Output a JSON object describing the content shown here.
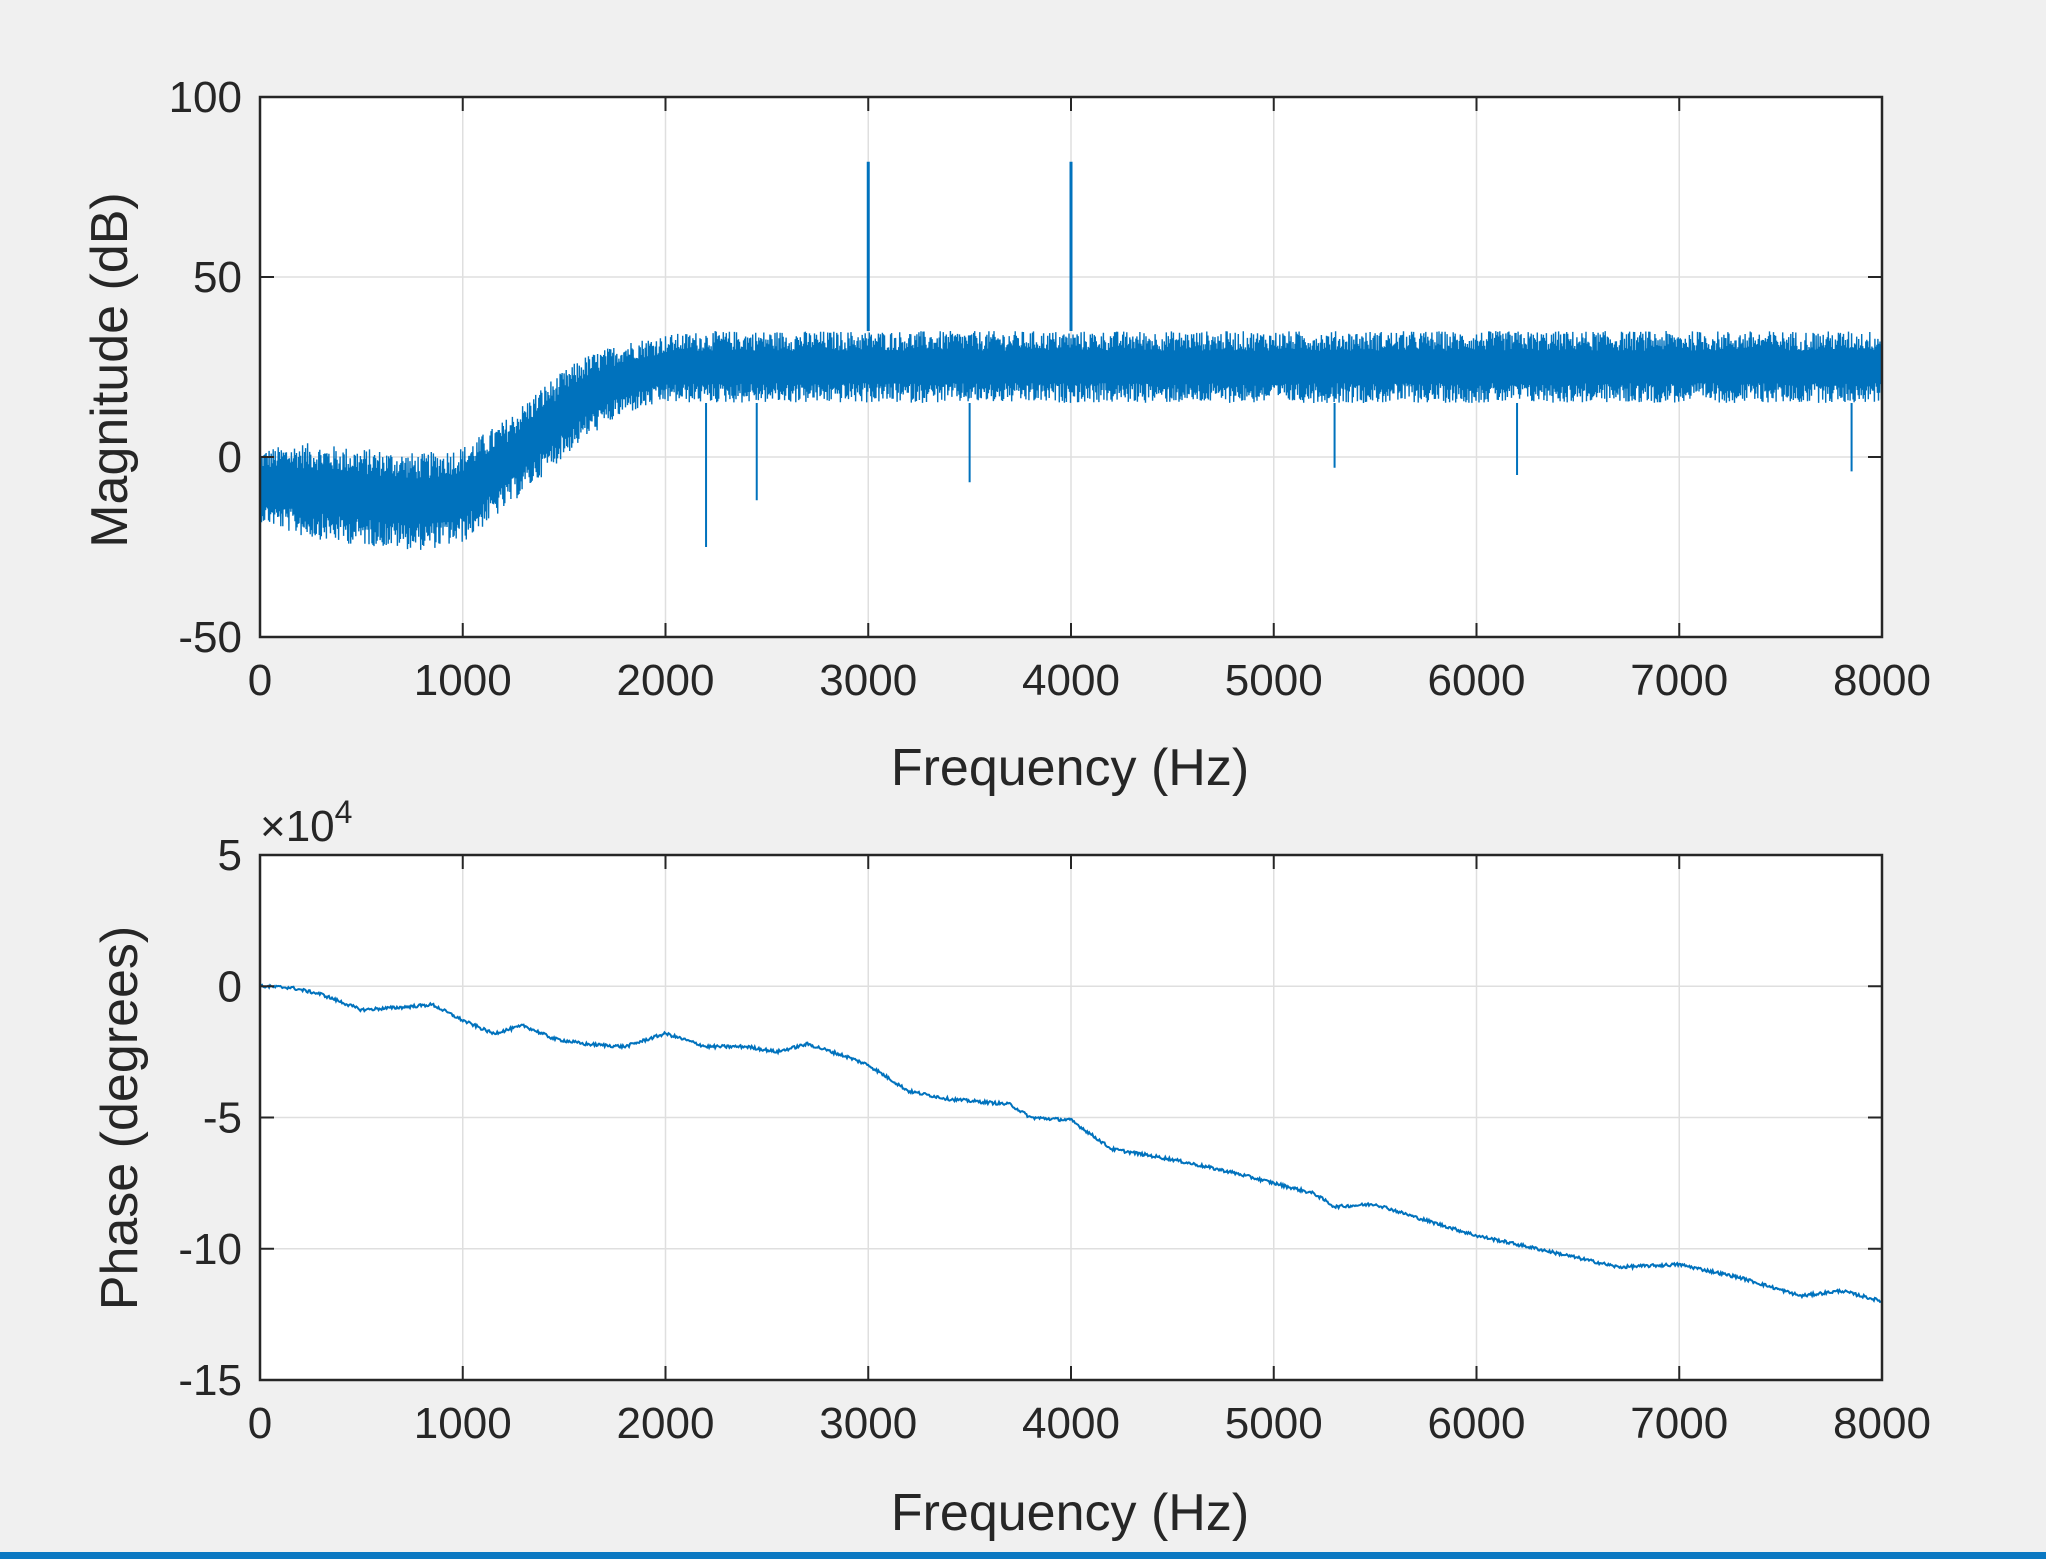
{
  "figure": {
    "colors": {
      "background": "#f0f0f0",
      "axes_bg": "#ffffff",
      "grid": "#dfdfdf",
      "axis": "#262626",
      "line": "#0072bd",
      "bottom_bar": "#0b78c2"
    }
  },
  "chart_data": [
    {
      "type": "line",
      "xlabel": "Frequency (Hz)",
      "ylabel": "Magnitude (dB)",
      "xlim": [
        0,
        8000
      ],
      "ylim": [
        -50,
        100
      ],
      "xticks": [
        "0",
        "1000",
        "2000",
        "3000",
        "4000",
        "5000",
        "6000",
        "7000",
        "8000"
      ],
      "yticks": [
        "100",
        "50",
        "0",
        "-50"
      ],
      "grid": true,
      "series": [
        {
          "envelope": {
            "x": [
              0,
              200,
              400,
              600,
              800,
              1000,
              1200,
              1400,
              1600,
              1800,
              2000,
              2200,
              2400,
              2600,
              2800,
              3000,
              3500,
              4000,
              4500,
              5000,
              5500,
              6000,
              6500,
              7000,
              7500,
              8000
            ],
            "upper": [
              2,
              4,
              3,
              2,
              1,
              3,
              10,
              20,
              28,
              32,
              34,
              35,
              35,
              35,
              35,
              35,
              35,
              35,
              35,
              35,
              35,
              35,
              35,
              35,
              35,
              35
            ],
            "lower": [
              -18,
              -22,
              -24,
              -25,
              -26,
              -24,
              -15,
              -5,
              5,
              12,
              15,
              15,
              15,
              15,
              15,
              15,
              15,
              15,
              15,
              15,
              15,
              15,
              15,
              15,
              15,
              15
            ]
          },
          "peaks": [
            {
              "x": 3000,
              "y": 82
            },
            {
              "x": 4000,
              "y": 82
            }
          ],
          "dips": [
            {
              "x": 2200,
              "y": -25
            },
            {
              "x": 2450,
              "y": -12
            },
            {
              "x": 3500,
              "y": -7
            },
            {
              "x": 5300,
              "y": -3
            },
            {
              "x": 6200,
              "y": -5
            },
            {
              "x": 7850,
              "y": -4
            }
          ]
        }
      ]
    },
    {
      "type": "line",
      "xlabel": "Frequency (Hz)",
      "ylabel": "Phase (degrees)",
      "exponent": "×10",
      "exponent_power": "4",
      "xlim": [
        0,
        8000
      ],
      "ylim": [
        -15,
        5
      ],
      "xticks": [
        "0",
        "1000",
        "2000",
        "3000",
        "4000",
        "5000",
        "6000",
        "7000",
        "8000"
      ],
      "yticks": [
        "5",
        "0",
        "-5",
        "-10",
        "-15"
      ],
      "grid": true,
      "series": [
        {
          "x": [
            0,
            150,
            300,
            500,
            700,
            850,
            1000,
            1150,
            1300,
            1450,
            1600,
            1800,
            2000,
            2200,
            2400,
            2550,
            2700,
            2900,
            3000,
            3200,
            3400,
            3700,
            3800,
            4000,
            4200,
            4500,
            4800,
            5000,
            5200,
            5300,
            5500,
            5700,
            6000,
            6300,
            6700,
            7000,
            7300,
            7600,
            7800,
            8000
          ],
          "y": [
            0,
            -0.05,
            -0.3,
            -0.9,
            -0.8,
            -0.7,
            -1.3,
            -1.8,
            -1.5,
            -2.0,
            -2.2,
            -2.3,
            -1.8,
            -2.3,
            -2.3,
            -2.5,
            -2.2,
            -2.7,
            -3.0,
            -4.0,
            -4.3,
            -4.5,
            -5.0,
            -5.1,
            -6.2,
            -6.6,
            -7.1,
            -7.5,
            -7.9,
            -8.4,
            -8.3,
            -8.8,
            -9.5,
            -10.0,
            -10.7,
            -10.6,
            -11.1,
            -11.8,
            -11.6,
            -12.0
          ]
        }
      ]
    }
  ]
}
